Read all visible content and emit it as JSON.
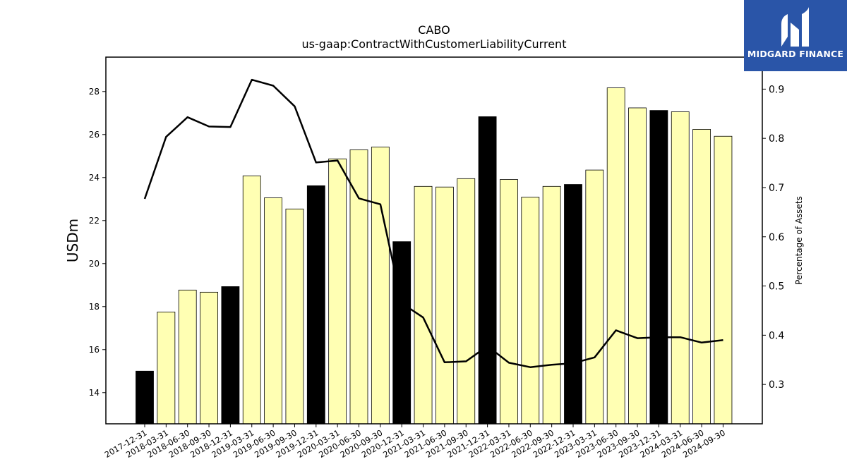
{
  "chart_data": {
    "type": "bar",
    "title": "CABO",
    "subtitle": "us-gaap:ContractWithCustomerLiabilityCurrent",
    "ylabel": "USDm",
    "y2label": "Percentage of Assets",
    "ylim": [
      12.55,
      29.6
    ],
    "y2lim": [
      0.22,
      0.965
    ],
    "yticks": [
      14,
      16,
      18,
      20,
      22,
      24,
      26,
      28
    ],
    "y2ticks": [
      0.3,
      0.4,
      0.5,
      0.6,
      0.7,
      0.8,
      0.9
    ],
    "categories": [
      "2017-12-31",
      "2018-03-31",
      "2018-06-30",
      "2018-09-30",
      "2018-12-31",
      "2019-03-31",
      "2019-06-30",
      "2019-09-30",
      "2019-12-31",
      "2020-03-31",
      "2020-06-30",
      "2020-09-30",
      "2020-12-31",
      "2021-03-31",
      "2021-06-30",
      "2021-09-30",
      "2021-12-31",
      "2022-03-31",
      "2022-06-30",
      "2022-09-30",
      "2022-12-31",
      "2023-03-31",
      "2023-06-30",
      "2023-09-30",
      "2023-12-31",
      "2024-03-31",
      "2024-06-30",
      "2024-09-30"
    ],
    "series": [
      {
        "values": [
          15.0,
          17.75,
          18.77,
          18.67,
          18.93,
          24.08,
          23.06,
          22.54,
          23.62,
          24.87,
          25.29,
          25.42,
          21.02,
          23.59,
          23.56,
          23.95,
          26.83,
          23.91,
          23.09,
          23.59,
          23.68,
          24.35,
          28.17,
          27.24,
          27.12,
          27.06,
          26.24,
          25.92
        ],
        "colors": [
          "#000000",
          "#ffffb3",
          "#ffffb3",
          "#ffffb3",
          "#000000",
          "#ffffb3",
          "#ffffb3",
          "#ffffb3",
          "#000000",
          "#ffffb3",
          "#ffffb3",
          "#ffffb3",
          "#000000",
          "#ffffb3",
          "#ffffb3",
          "#ffffb3",
          "#000000",
          "#ffffb3",
          "#ffffb3",
          "#ffffb3",
          "#000000",
          "#ffffb3",
          "#ffffb3",
          "#ffffb3",
          "#000000",
          "#ffffb3",
          "#ffffb3",
          "#ffffb3"
        ]
      },
      {
        "type": "line",
        "axis": "right",
        "color": "#000000",
        "values": [
          0.677,
          0.803,
          0.843,
          0.824,
          0.823,
          0.919,
          0.907,
          0.865,
          0.751,
          0.755,
          0.678,
          0.666,
          0.465,
          0.436,
          0.345,
          0.347,
          0.378,
          0.344,
          0.335,
          0.34,
          0.343,
          0.355,
          0.41,
          0.394,
          0.396,
          0.396,
          0.385,
          0.39
        ]
      }
    ],
    "grid": false
  },
  "logo": {
    "text": "MIDGARD FINANCE"
  }
}
